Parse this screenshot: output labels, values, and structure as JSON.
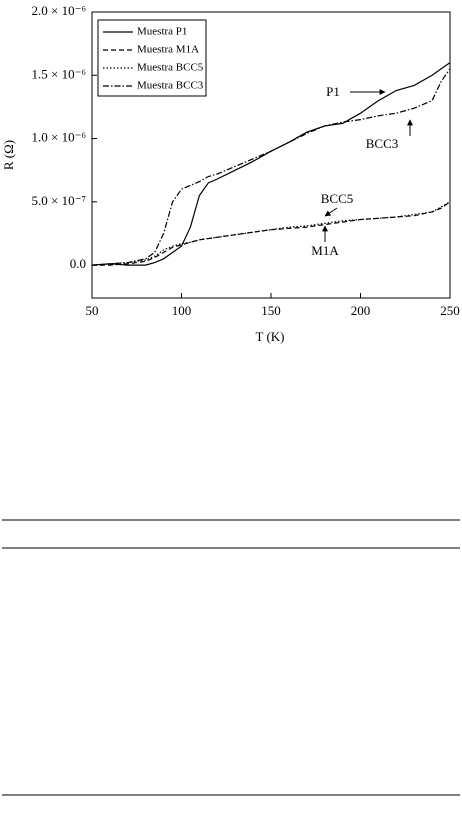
{
  "chart_data": {
    "type": "line",
    "x_label": "T (K)",
    "y_label": "R (Ω)",
    "x": [
      50,
      60,
      70,
      80,
      85,
      90,
      95,
      100,
      105,
      110,
      115,
      120,
      130,
      140,
      150,
      160,
      170,
      180,
      190,
      200,
      210,
      220,
      230,
      240,
      245,
      250
    ],
    "series": [
      {
        "name": "Muestra P1",
        "color": "#000000",
        "dash": "solid",
        "values": [
          0,
          1e-08,
          0,
          0,
          2e-08,
          5e-08,
          1e-07,
          1.5e-07,
          3e-07,
          5.5e-07,
          6.5e-07,
          6.8e-07,
          7.5e-07,
          8.2e-07,
          9e-07,
          9.7e-07,
          1.05e-06,
          1.1e-06,
          1.12e-06,
          1.2e-06,
          1.3e-06,
          1.38e-06,
          1.42e-06,
          1.5e-06,
          1.55e-06,
          1.6e-06
        ]
      },
      {
        "name": "Muestra M1A",
        "color": "#000000",
        "dash": "dashed",
        "values": [
          0,
          0,
          1e-08,
          3e-08,
          6e-08,
          1e-07,
          1.4e-07,
          1.6e-07,
          1.8e-07,
          2e-07,
          2.1e-07,
          2.2e-07,
          2.4e-07,
          2.6e-07,
          2.8e-07,
          2.9e-07,
          3e-07,
          3.2e-07,
          3.4e-07,
          3.6e-07,
          3.7e-07,
          3.8e-07,
          3.9e-07,
          4.2e-07,
          4.5e-07,
          5e-07
        ]
      },
      {
        "name": "Muestra BCC5",
        "color": "#000000",
        "dash": "dotted",
        "values": [
          0,
          1e-08,
          2e-08,
          4e-08,
          7e-08,
          1.2e-07,
          1.5e-07,
          1.7e-07,
          1.8e-07,
          2e-07,
          2.1e-07,
          2.2e-07,
          2.4e-07,
          2.6e-07,
          2.8e-07,
          3e-07,
          3.1e-07,
          3.3e-07,
          3.5e-07,
          3.6e-07,
          3.7e-07,
          3.8e-07,
          4e-07,
          4.2e-07,
          4.6e-07,
          5e-07
        ]
      },
      {
        "name": "Muestra BCC3",
        "color": "#000000",
        "dash": "dashdot",
        "values": [
          0,
          1e-08,
          2e-08,
          5e-08,
          1e-07,
          2.5e-07,
          5e-07,
          6e-07,
          6.3e-07,
          6.6e-07,
          7e-07,
          7.2e-07,
          7.8e-07,
          8.4e-07,
          9e-07,
          9.7e-07,
          1.04e-06,
          1.1e-06,
          1.13e-06,
          1.15e-06,
          1.18e-06,
          1.2e-06,
          1.24e-06,
          1.3e-06,
          1.45e-06,
          1.55e-06
        ]
      }
    ],
    "annotations": [
      "P1",
      "BCC3",
      "BCC5",
      "M1A"
    ],
    "xlim": [
      50,
      250
    ],
    "xticks": [
      50,
      100,
      150,
      200,
      250
    ],
    "ylim": [
      -2.6e-07,
      2e-06
    ],
    "yticks": [
      {
        "value": 0,
        "label": "0.0"
      },
      {
        "value": 5e-07,
        "label": "5.0 × 10⁻⁷"
      },
      {
        "value": 1e-06,
        "label": "1.0 × 10⁻⁶"
      },
      {
        "value": 1.5e-06,
        "label": "1.5 × 10⁻⁶"
      },
      {
        "value": 2e-06,
        "label": "2.0 × 10⁻⁶"
      }
    ],
    "legend": "top-left",
    "grid": false
  }
}
